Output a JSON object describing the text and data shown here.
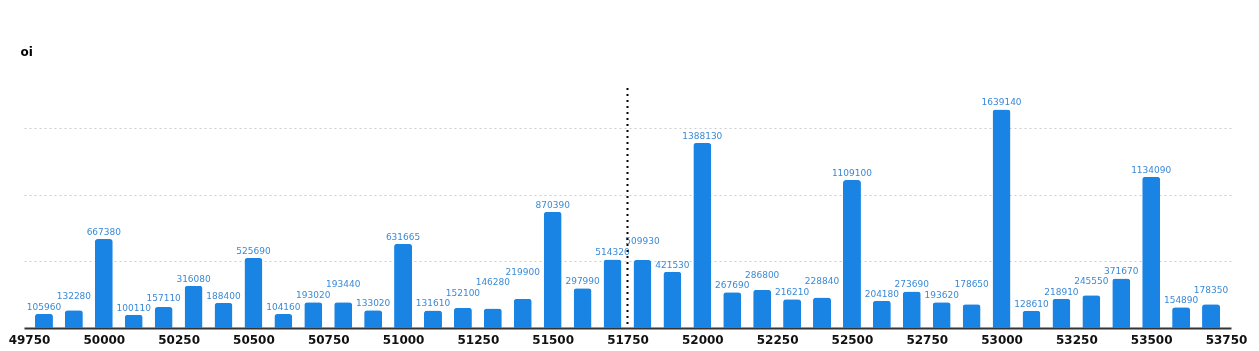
{
  "chart_data": {
    "type": "bar",
    "ylabel": "oi",
    "x": [
      49800,
      49900,
      50000,
      50100,
      50200,
      50300,
      50400,
      50500,
      50600,
      50700,
      50800,
      50900,
      51000,
      51100,
      51200,
      51300,
      51400,
      51500,
      51600,
      51700,
      51800,
      51900,
      52000,
      52100,
      52200,
      52300,
      52400,
      52500,
      52600,
      52700,
      52800,
      52900,
      53000,
      53100,
      53200,
      53300,
      53400,
      53500,
      53600,
      53700
    ],
    "values": [
      105960,
      132280,
      667380,
      100110,
      157110,
      316080,
      188400,
      525690,
      104160,
      193020,
      193440,
      133020,
      631665,
      131610,
      152100,
      146280,
      219900,
      870390,
      297990,
      514320,
      509930,
      421530,
      1388130,
      267690,
      286800,
      216210,
      228840,
      1109100,
      204180,
      273690,
      193620,
      178650,
      1639140,
      128610,
      218910,
      245550,
      371670,
      1134090,
      154890,
      178350
    ],
    "color": "#1a84e5",
    "data_labels": true,
    "xlim": [
      49750,
      53750
    ],
    "xticks": [
      49750,
      50000,
      50250,
      50500,
      50750,
      51000,
      51250,
      51500,
      51750,
      52000,
      52250,
      52500,
      52750,
      53000,
      53250,
      53500,
      53750
    ],
    "ylim": [
      0,
      1800000
    ],
    "yticks": [
      {
        "value": 500000,
        "label": null
      },
      {
        "value": 1000000,
        "label": null
      },
      {
        "value": 1500000,
        "label": null
      }
    ],
    "grid": "y",
    "tick_labels": "x",
    "ref_lines": [
      {
        "axis": "x",
        "value": 51750,
        "color": "#000000",
        "line_style": "dotted"
      }
    ]
  }
}
